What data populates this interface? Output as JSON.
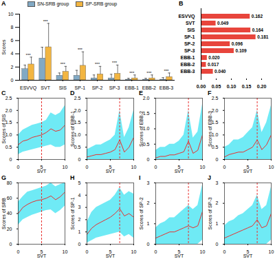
{
  "chart_data": [
    {
      "type": "bar",
      "title": "A",
      "ylabel": "Scores",
      "categories": [
        "ESVVQ",
        "SVT",
        "SIS",
        "SP-1",
        "SP-2",
        "SP-3",
        "EBB-1",
        "EBB-2",
        "EBB-3"
      ],
      "series": [
        {
          "name": "SN-SRB group",
          "color": "#82a9c4",
          "values": [
            1.7,
            3.3,
            0.7,
            0.7,
            0.3,
            0.3,
            0.1,
            0.1,
            0.1
          ],
          "errors": [
            0.6,
            1.7,
            0.4,
            0.8,
            0.5,
            0.6,
            0.2,
            0.2,
            0.3
          ]
        },
        {
          "name": "SP-SRB group",
          "color": "#f2b541",
          "values": [
            2.4,
            5.0,
            1.3,
            2.2,
            0.9,
            1.0,
            0.3,
            0.3,
            0.5
          ],
          "errors": [
            1.1,
            3.6,
            0.8,
            2.1,
            1.2,
            1.3,
            0.5,
            0.5,
            0.6
          ]
        }
      ],
      "significance": [
        "***",
        "***",
        "***",
        "***",
        "***",
        "***",
        "***",
        "***",
        "***"
      ],
      "ylim": [
        0,
        10
      ],
      "yticks": [
        0,
        2,
        4,
        6,
        8,
        10
      ],
      "legend": "top"
    },
    {
      "type": "bar",
      "title": "B",
      "orientation": "horizontal",
      "data_labels": true,
      "color": "#e8453c",
      "categories": [
        "ESVVQ",
        "SVT",
        "SIS",
        "SP-1",
        "SP-2",
        "SP-3",
        "EBB-1",
        "EBB-2",
        "EBB-3"
      ],
      "values": [
        0.162,
        0.049,
        0.164,
        0.181,
        0.096,
        0.109,
        0.02,
        0.017,
        0.04
      ],
      "value_labels": [
        "0.162",
        "0.049",
        "0.164",
        "0.181",
        "0.096",
        "0.109",
        "0.020",
        "0.017",
        "0.040"
      ],
      "xlim": [
        0,
        0.2
      ],
      "xticks": [
        {
          "value": 0,
          "label": "0.00"
        },
        {
          "value": 0.05,
          "label": "0.05"
        },
        {
          "value": 0.1,
          "label": "0.10"
        },
        {
          "value": 0.15,
          "label": "0.15"
        },
        {
          "value": 0.2,
          "label": "0.20"
        }
      ]
    },
    {
      "type": "line",
      "title": "C",
      "xlabel": "SVT",
      "ylabel": "Scores of SIS",
      "color": "#e8312f",
      "threshold": 5,
      "x": [
        0,
        1,
        2,
        3,
        4,
        5,
        6,
        7,
        8,
        9,
        10
      ],
      "values": [
        0.6,
        0.75,
        0.8,
        0.9,
        0.95,
        1.0,
        1.1,
        1.25,
        1.15,
        1.2,
        1.4
      ],
      "lower": [
        0.2,
        0.3,
        0.35,
        0.4,
        0.45,
        0.5,
        0.55,
        0.6,
        0.5,
        0.5,
        0.6
      ],
      "upper": [
        1.0,
        1.2,
        1.3,
        1.4,
        1.45,
        1.5,
        1.6,
        1.9,
        1.8,
        1.9,
        2.2
      ],
      "xlim": [
        0,
        10
      ],
      "xticks": [
        0,
        5,
        10
      ],
      "ylim": [
        0,
        2.5
      ],
      "yticks": [
        0,
        0.5,
        {
          "value": 1,
          "label": "1.0"
        },
        1.5,
        {
          "value": 2,
          "label": "2.0"
        },
        2.5
      ]
    },
    {
      "type": "line",
      "title": "D",
      "xlabel": "SVT",
      "ylabel": "Scores of EBB-1",
      "color": "#e8312f",
      "threshold": 7,
      "x": [
        0,
        1,
        2,
        3,
        4,
        5,
        6,
        7,
        8,
        9,
        10
      ],
      "values": [
        0.1,
        0.15,
        0.2,
        0.2,
        0.25,
        0.3,
        0.4,
        0.8,
        0.3,
        0.5,
        0.9
      ],
      "lower": [
        0,
        0,
        0,
        0,
        0,
        0,
        0,
        0,
        0,
        0,
        0
      ],
      "upper": [
        0.4,
        0.5,
        0.6,
        0.6,
        0.7,
        0.8,
        1.0,
        2.0,
        0.9,
        1.3,
        2.0
      ],
      "xlim": [
        0,
        10
      ],
      "xticks": [
        0,
        5,
        10
      ],
      "ylim": [
        0,
        2.5
      ],
      "yticks": [
        0,
        0.5,
        {
          "value": 1,
          "label": "1.0"
        },
        1.5,
        {
          "value": 2,
          "label": "2.0"
        },
        2.5
      ]
    },
    {
      "type": "line",
      "title": "E",
      "xlabel": "SVT",
      "ylabel": "Scores of EBB-2",
      "color": "#e8312f",
      "threshold": 7,
      "x": [
        0,
        1,
        2,
        3,
        4,
        5,
        6,
        7,
        8,
        9,
        10
      ],
      "values": [
        0.05,
        0.1,
        0.1,
        0.15,
        0.15,
        0.2,
        0.25,
        0.6,
        0.2,
        0.3,
        0.8
      ],
      "lower": [
        0,
        0,
        0,
        0,
        0,
        0,
        0,
        0,
        0,
        0,
        0
      ],
      "upper": [
        0.3,
        0.4,
        0.4,
        0.5,
        0.5,
        0.6,
        0.8,
        1.6,
        0.7,
        0.9,
        1.8
      ],
      "xlim": [
        0,
        10
      ],
      "xticks": [
        0,
        5,
        10
      ],
      "ylim": [
        0,
        2
      ],
      "yticks": [
        0,
        0.5,
        {
          "value": 1,
          "label": "1.0"
        },
        1.5,
        {
          "value": 2,
          "label": "2.0"
        }
      ]
    },
    {
      "type": "line",
      "title": "F",
      "xlabel": "SVT",
      "ylabel": "Scores of EBB-3",
      "color": "#e8312f",
      "threshold": 7,
      "x": [
        0,
        1,
        2,
        3,
        4,
        5,
        6,
        7,
        8,
        9,
        10
      ],
      "values": [
        0.1,
        0.2,
        0.25,
        0.3,
        0.3,
        0.4,
        0.5,
        0.8,
        0.4,
        0.6,
        1.0
      ],
      "lower": [
        0,
        0,
        0,
        0,
        0,
        0,
        0,
        0,
        0,
        0,
        0
      ],
      "upper": [
        0.5,
        0.6,
        0.8,
        0.8,
        0.9,
        1.1,
        1.3,
        2.0,
        1.1,
        1.5,
        2.2
      ],
      "xlim": [
        0,
        10
      ],
      "xticks": [
        0,
        5,
        10
      ],
      "ylim": [
        0,
        2.5
      ],
      "yticks": [
        0,
        0.5,
        {
          "value": 1,
          "label": "1.0"
        },
        1.5,
        {
          "value": 2,
          "label": "2.0"
        },
        2.5
      ]
    },
    {
      "type": "line",
      "title": "G",
      "xlabel": "SVT",
      "ylabel": "Scores of SRB",
      "color": "#e8312f",
      "threshold": 5,
      "x": [
        0,
        1,
        2,
        3,
        4,
        5,
        6,
        7,
        8,
        9,
        10
      ],
      "values": [
        40,
        48,
        52,
        55,
        57,
        58,
        60,
        63,
        58,
        62,
        68
      ],
      "lower": [
        25,
        32,
        35,
        38,
        40,
        42,
        44,
        45,
        40,
        44,
        50
      ],
      "upper": [
        55,
        62,
        68,
        70,
        72,
        74,
        76,
        80,
        75,
        78,
        80
      ],
      "xlim": [
        0,
        10
      ],
      "xticks": [
        0,
        5,
        10
      ],
      "ylim": [
        0,
        80
      ],
      "yticks": [
        0,
        20,
        40,
        60,
        80
      ]
    },
    {
      "type": "line",
      "title": "H",
      "xlabel": "SVT",
      "ylabel": "Scores of SP-1",
      "color": "#e8312f",
      "threshold": 7,
      "x": [
        0,
        1,
        2,
        3,
        4,
        5,
        6,
        7,
        8,
        9,
        10
      ],
      "values": [
        0.8,
        1.3,
        1.6,
        1.8,
        2.0,
        2.2,
        2.5,
        2.9,
        2.3,
        2.5,
        2.2
      ],
      "lower": [
        0.1,
        0.3,
        0.5,
        0.6,
        0.7,
        0.8,
        0.9,
        1.0,
        0.6,
        0.8,
        0.5
      ],
      "upper": [
        1.8,
        2.6,
        3.0,
        3.2,
        3.4,
        3.6,
        4.0,
        4.6,
        4.0,
        4.3,
        4.1
      ],
      "xlim": [
        0,
        10
      ],
      "xticks": [
        0,
        5,
        10
      ],
      "ylim": [
        0,
        5
      ],
      "yticks": [
        0,
        1,
        2,
        3,
        4,
        5
      ]
    },
    {
      "type": "line",
      "title": "I",
      "xlabel": "SVT",
      "ylabel": "Scores of SP-2",
      "color": "#e8312f",
      "threshold": 7,
      "x": [
        0,
        1,
        2,
        3,
        4,
        5,
        6,
        7,
        8,
        9,
        10
      ],
      "values": [
        0.3,
        0.4,
        0.5,
        0.6,
        0.6,
        0.7,
        0.8,
        0.9,
        0.8,
        0.9,
        1.6
      ],
      "lower": [
        0,
        0,
        0,
        0,
        0,
        0,
        0,
        0,
        0,
        0,
        0.2
      ],
      "upper": [
        0.8,
        1.0,
        1.1,
        1.3,
        1.3,
        1.5,
        1.7,
        1.9,
        1.7,
        1.9,
        2.9
      ],
      "xlim": [
        0,
        10
      ],
      "xticks": [
        0,
        5,
        10
      ],
      "ylim": [
        0,
        3
      ],
      "yticks": [
        0,
        1,
        2,
        3
      ]
    },
    {
      "type": "line",
      "title": "J",
      "xlabel": "SVT",
      "ylabel": "Scores of SP-3",
      "color": "#e8312f",
      "threshold": 7,
      "x": [
        0,
        1,
        2,
        3,
        4,
        5,
        6,
        7,
        8,
        9,
        10
      ],
      "values": [
        0.3,
        0.4,
        0.5,
        0.6,
        0.7,
        0.8,
        0.9,
        1.2,
        0.8,
        0.9,
        1.5
      ],
      "lower": [
        0,
        0,
        0,
        0,
        0,
        0,
        0,
        0,
        0,
        0,
        0.2
      ],
      "upper": [
        0.9,
        1.1,
        1.2,
        1.4,
        1.5,
        1.7,
        1.9,
        2.4,
        1.7,
        1.9,
        2.8
      ],
      "xlim": [
        0,
        10
      ],
      "xticks": [
        0,
        5,
        10
      ],
      "ylim": [
        0,
        3
      ],
      "yticks": [
        0,
        1,
        2,
        3
      ]
    }
  ]
}
